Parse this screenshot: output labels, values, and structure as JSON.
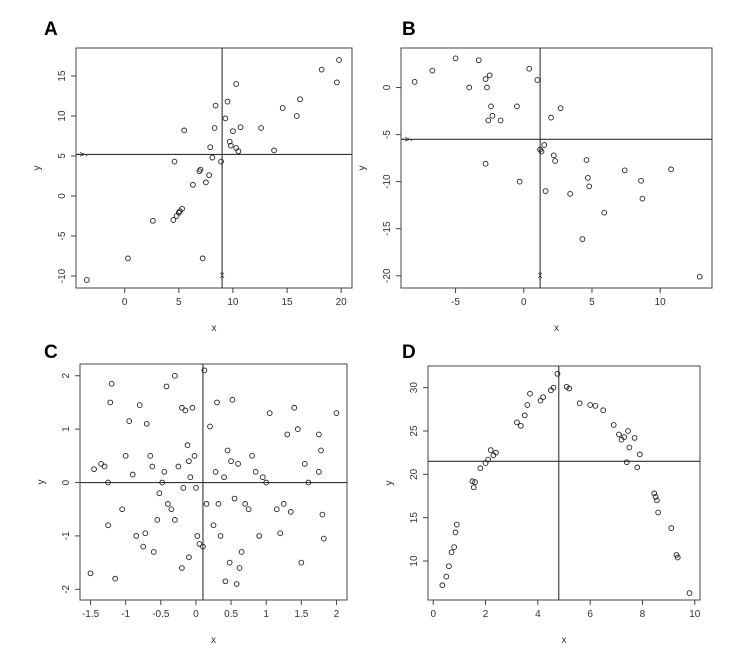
{
  "chart_data": [
    {
      "panel": "A",
      "type": "scatter",
      "xlabel": "x",
      "ylabel": "y",
      "xlim": [
        -4.5,
        21
      ],
      "ylim": [
        -11.5,
        18.5
      ],
      "xticks": [
        0,
        5,
        10,
        15,
        20
      ],
      "yticks": [
        -10,
        -5,
        0,
        5,
        10,
        15
      ],
      "reference_lines": {
        "vertical_x": 9,
        "horizontal_y": 5.2
      },
      "mean_labels": {
        "x": "x̄",
        "y": "ȳ"
      },
      "points": [
        [
          -3.5,
          -10.5
        ],
        [
          0.3,
          -7.8
        ],
        [
          2.6,
          -3.1
        ],
        [
          4.5,
          -3.0
        ],
        [
          4.8,
          -2.5
        ],
        [
          4.6,
          4.3
        ],
        [
          5.1,
          -1.9
        ],
        [
          5.0,
          -2.1
        ],
        [
          5.3,
          -1.6
        ],
        [
          5.5,
          8.2
        ],
        [
          6.3,
          1.4
        ],
        [
          6.9,
          3.1
        ],
        [
          7.0,
          3.3
        ],
        [
          7.2,
          -7.8
        ],
        [
          7.5,
          1.7
        ],
        [
          7.8,
          2.6
        ],
        [
          7.9,
          6.1
        ],
        [
          8.1,
          4.8
        ],
        [
          8.3,
          8.5
        ],
        [
          8.4,
          11.3
        ],
        [
          8.9,
          4.3
        ],
        [
          9.3,
          9.7
        ],
        [
          9.5,
          11.8
        ],
        [
          9.7,
          6.8
        ],
        [
          9.8,
          6.3
        ],
        [
          10.0,
          8.1
        ],
        [
          10.3,
          6.0
        ],
        [
          10.3,
          14.0
        ],
        [
          10.5,
          5.6
        ],
        [
          10.7,
          8.6
        ],
        [
          12.6,
          8.5
        ],
        [
          13.8,
          5.7
        ],
        [
          14.6,
          11.0
        ],
        [
          15.9,
          10.0
        ],
        [
          16.2,
          12.1
        ],
        [
          18.2,
          15.8
        ],
        [
          19.6,
          14.2
        ],
        [
          19.8,
          17.0
        ]
      ]
    },
    {
      "panel": "B",
      "type": "scatter",
      "xlabel": "x",
      "ylabel": "y",
      "xlim": [
        -9,
        13.8
      ],
      "ylim": [
        -21.3,
        4.2
      ],
      "xticks": [
        -5,
        0,
        5,
        10
      ],
      "yticks": [
        -20,
        -15,
        -10,
        -5,
        0
      ],
      "reference_lines": {
        "vertical_x": 1.2,
        "horizontal_y": -5.5
      },
      "mean_labels": {
        "x": "x̄",
        "y": "ȳ"
      },
      "points": [
        [
          -8.0,
          0.6
        ],
        [
          -6.7,
          1.8
        ],
        [
          -5.0,
          3.1
        ],
        [
          -4.0,
          0.0
        ],
        [
          -3.3,
          2.9
        ],
        [
          -2.8,
          0.9
        ],
        [
          -2.5,
          1.3
        ],
        [
          -2.7,
          0.0
        ],
        [
          -2.4,
          -2.0
        ],
        [
          -2.6,
          -3.5
        ],
        [
          -2.3,
          -3.0
        ],
        [
          -1.7,
          -3.5
        ],
        [
          -2.8,
          -8.1
        ],
        [
          -0.5,
          -2.0
        ],
        [
          -0.3,
          -10.0
        ],
        [
          0.4,
          2.0
        ],
        [
          1.0,
          0.8
        ],
        [
          1.2,
          -6.6
        ],
        [
          1.3,
          -6.8
        ],
        [
          1.5,
          -6.1
        ],
        [
          1.6,
          -11.0
        ],
        [
          2.0,
          -3.2
        ],
        [
          2.2,
          -7.2
        ],
        [
          2.3,
          -7.8
        ],
        [
          2.7,
          -2.2
        ],
        [
          3.4,
          -11.3
        ],
        [
          4.3,
          -16.1
        ],
        [
          4.6,
          -7.7
        ],
        [
          4.7,
          -9.6
        ],
        [
          4.8,
          -10.5
        ],
        [
          5.9,
          -13.3
        ],
        [
          7.4,
          -8.8
        ],
        [
          8.6,
          -9.9
        ],
        [
          8.7,
          -11.8
        ],
        [
          10.8,
          -8.7
        ],
        [
          12.9,
          -20.1
        ]
      ]
    },
    {
      "panel": "C",
      "type": "scatter",
      "xlabel": "x",
      "ylabel": "y",
      "xlim": [
        -1.65,
        2.15
      ],
      "ylim": [
        -2.2,
        2.22
      ],
      "xticks": [
        -1.5,
        -1.0,
        -0.5,
        0.0,
        0.5,
        1.0,
        1.5,
        2.0
      ],
      "yticks": [
        -2,
        -1,
        0,
        1,
        2
      ],
      "reference_lines": {
        "vertical_x": 0.1,
        "horizontal_y": 0.0
      },
      "points": [
        [
          -1.45,
          0.25
        ],
        [
          -1.5,
          -1.7
        ],
        [
          -1.35,
          0.35
        ],
        [
          -1.3,
          0.3
        ],
        [
          -1.25,
          0.0
        ],
        [
          -1.25,
          -0.8
        ],
        [
          -1.2,
          1.85
        ],
        [
          -1.22,
          1.5
        ],
        [
          -1.15,
          -1.8
        ],
        [
          -1.05,
          -0.5
        ],
        [
          -1.0,
          0.5
        ],
        [
          -0.95,
          1.15
        ],
        [
          -0.9,
          0.15
        ],
        [
          -0.85,
          -1.0
        ],
        [
          -0.8,
          1.45
        ],
        [
          -0.75,
          -1.2
        ],
        [
          -0.72,
          -0.95
        ],
        [
          -0.7,
          1.1
        ],
        [
          -0.65,
          0.5
        ],
        [
          -0.62,
          0.3
        ],
        [
          -0.6,
          -1.3
        ],
        [
          -0.55,
          -0.7
        ],
        [
          -0.52,
          -0.2
        ],
        [
          -0.48,
          -0.0
        ],
        [
          -0.45,
          0.2
        ],
        [
          -0.42,
          1.8
        ],
        [
          -0.4,
          -0.4
        ],
        [
          -0.35,
          -0.5
        ],
        [
          -0.3,
          2.0
        ],
        [
          -0.3,
          -0.7
        ],
        [
          -0.25,
          0.3
        ],
        [
          -0.2,
          -1.6
        ],
        [
          -0.2,
          1.4
        ],
        [
          -0.18,
          -0.1
        ],
        [
          -0.15,
          1.35
        ],
        [
          -0.12,
          0.7
        ],
        [
          -0.1,
          0.4
        ],
        [
          -0.1,
          -1.4
        ],
        [
          -0.08,
          0.1
        ],
        [
          -0.05,
          1.4
        ],
        [
          -0.02,
          0.5
        ],
        [
          0.0,
          -0.1
        ],
        [
          0.02,
          -1.0
        ],
        [
          0.05,
          -1.15
        ],
        [
          0.1,
          -1.2
        ],
        [
          0.12,
          2.1
        ],
        [
          0.15,
          -0.4
        ],
        [
          0.2,
          1.05
        ],
        [
          0.25,
          -0.8
        ],
        [
          0.28,
          0.2
        ],
        [
          0.3,
          1.5
        ],
        [
          0.32,
          -0.4
        ],
        [
          0.35,
          -1.0
        ],
        [
          0.4,
          0.1
        ],
        [
          0.42,
          -1.85
        ],
        [
          0.45,
          0.6
        ],
        [
          0.48,
          -1.5
        ],
        [
          0.5,
          0.4
        ],
        [
          0.52,
          1.55
        ],
        [
          0.55,
          -0.3
        ],
        [
          0.58,
          -1.9
        ],
        [
          0.6,
          0.35
        ],
        [
          0.62,
          -1.6
        ],
        [
          0.65,
          -1.3
        ],
        [
          0.7,
          -0.4
        ],
        [
          0.75,
          -0.5
        ],
        [
          0.8,
          0.5
        ],
        [
          0.85,
          0.2
        ],
        [
          0.9,
          -1.0
        ],
        [
          0.95,
          0.1
        ],
        [
          1.0,
          0.0
        ],
        [
          1.05,
          1.3
        ],
        [
          1.15,
          -0.5
        ],
        [
          1.2,
          -0.95
        ],
        [
          1.25,
          -0.4
        ],
        [
          1.3,
          0.9
        ],
        [
          1.35,
          -0.55
        ],
        [
          1.4,
          1.4
        ],
        [
          1.45,
          1.0
        ],
        [
          1.5,
          -1.5
        ],
        [
          1.55,
          0.35
        ],
        [
          1.6,
          0.0
        ],
        [
          1.75,
          0.9
        ],
        [
          1.78,
          0.6
        ],
        [
          1.8,
          -0.6
        ],
        [
          1.82,
          -1.05
        ],
        [
          1.75,
          0.2
        ],
        [
          2.0,
          1.3
        ]
      ]
    },
    {
      "panel": "D",
      "type": "scatter",
      "xlabel": "x",
      "ylabel": "y",
      "xlim": [
        -0.2,
        10.2
      ],
      "ylim": [
        5.5,
        32.5
      ],
      "xticks": [
        0,
        2,
        4,
        6,
        8,
        10
      ],
      "yticks": [
        10,
        15,
        20,
        25,
        30
      ],
      "reference_lines": {
        "vertical_x": 4.8,
        "horizontal_y": 21.5
      },
      "points": [
        [
          0.35,
          7.2
        ],
        [
          0.5,
          8.2
        ],
        [
          0.6,
          9.4
        ],
        [
          0.7,
          11.0
        ],
        [
          0.8,
          11.6
        ],
        [
          0.85,
          13.3
        ],
        [
          0.9,
          14.2
        ],
        [
          1.5,
          19.2
        ],
        [
          1.55,
          18.5
        ],
        [
          1.6,
          19.1
        ],
        [
          1.8,
          20.7
        ],
        [
          2.0,
          21.3
        ],
        [
          2.1,
          21.7
        ],
        [
          2.2,
          22.8
        ],
        [
          2.3,
          22.2
        ],
        [
          2.4,
          22.5
        ],
        [
          3.2,
          26.0
        ],
        [
          3.35,
          25.6
        ],
        [
          3.5,
          26.8
        ],
        [
          3.6,
          28.0
        ],
        [
          3.7,
          29.3
        ],
        [
          4.1,
          28.5
        ],
        [
          4.2,
          28.9
        ],
        [
          4.5,
          29.7
        ],
        [
          4.6,
          30.0
        ],
        [
          4.75,
          31.6
        ],
        [
          5.1,
          30.1
        ],
        [
          5.2,
          29.9
        ],
        [
          5.6,
          28.2
        ],
        [
          6.0,
          28.0
        ],
        [
          6.2,
          27.9
        ],
        [
          6.5,
          27.4
        ],
        [
          6.9,
          25.7
        ],
        [
          7.1,
          24.6
        ],
        [
          7.2,
          24.0
        ],
        [
          7.3,
          24.3
        ],
        [
          7.4,
          21.4
        ],
        [
          7.45,
          25.0
        ],
        [
          7.5,
          23.1
        ],
        [
          7.7,
          24.2
        ],
        [
          7.8,
          20.8
        ],
        [
          7.9,
          22.3
        ],
        [
          8.45,
          17.8
        ],
        [
          8.5,
          17.4
        ],
        [
          8.55,
          17.0
        ],
        [
          8.6,
          15.6
        ],
        [
          9.1,
          13.8
        ],
        [
          9.3,
          10.7
        ],
        [
          9.35,
          10.4
        ],
        [
          9.8,
          6.3
        ]
      ]
    }
  ]
}
